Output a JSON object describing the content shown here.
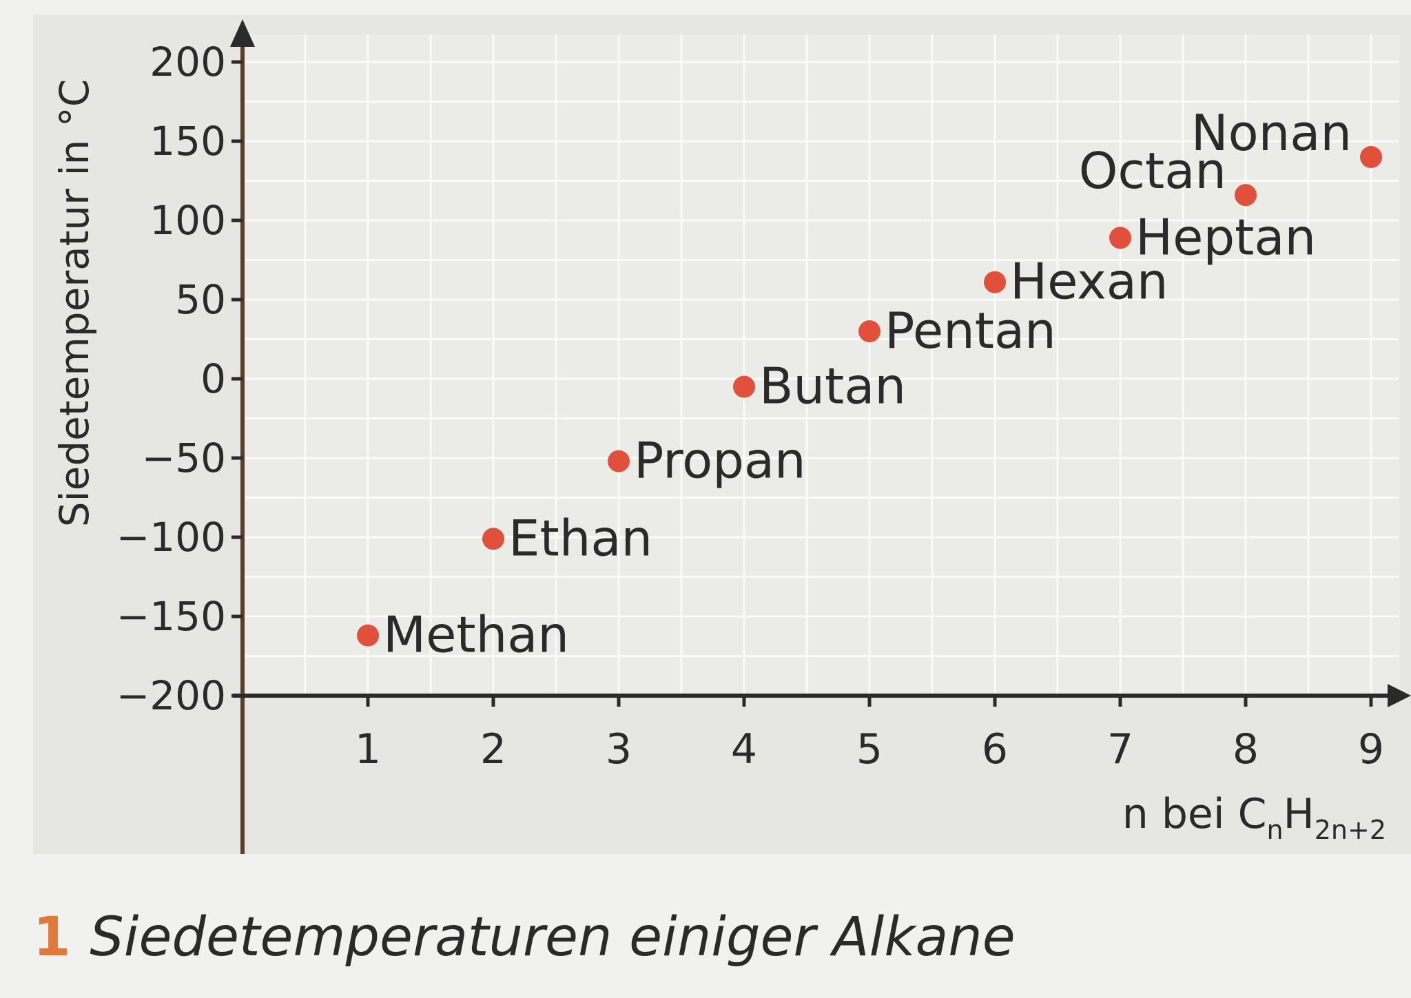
{
  "chart_data": {
    "type": "scatter",
    "ylabel": "Siedetemperatur in °C",
    "xlabel": {
      "main": "n bei C",
      "sub1": "n",
      "mid": "H",
      "sub2": "2n+2"
    },
    "xlim": [
      0,
      9
    ],
    "ylim": [
      -200,
      200
    ],
    "x_ticks": [
      1,
      2,
      3,
      4,
      5,
      6,
      7,
      8,
      9
    ],
    "y_ticks": [
      200,
      150,
      100,
      50,
      0,
      -50,
      -100,
      -150,
      -200
    ],
    "y_tick_labels": [
      "200",
      "150",
      "100",
      "50",
      "0",
      "−50",
      "−100",
      "−150",
      "−200"
    ],
    "grid": true,
    "point_color": "#e0503a",
    "points": [
      {
        "x": 1,
        "y": -162,
        "label": "Methan"
      },
      {
        "x": 2,
        "y": -101,
        "label": "Ethan"
      },
      {
        "x": 3,
        "y": -52,
        "label": "Propan"
      },
      {
        "x": 4,
        "y": -5,
        "label": "Butan"
      },
      {
        "x": 5,
        "y": 30,
        "label": "Pentan"
      },
      {
        "x": 6,
        "y": 61,
        "label": "Hexan"
      },
      {
        "x": 7,
        "y": 89,
        "label": "Heptan"
      },
      {
        "x": 8,
        "y": 116,
        "label": "Octan"
      },
      {
        "x": 9,
        "y": 140,
        "label": "Nonan"
      }
    ]
  },
  "figure": {
    "number": "1",
    "caption": "Siedetemperaturen einiger Alkane"
  }
}
